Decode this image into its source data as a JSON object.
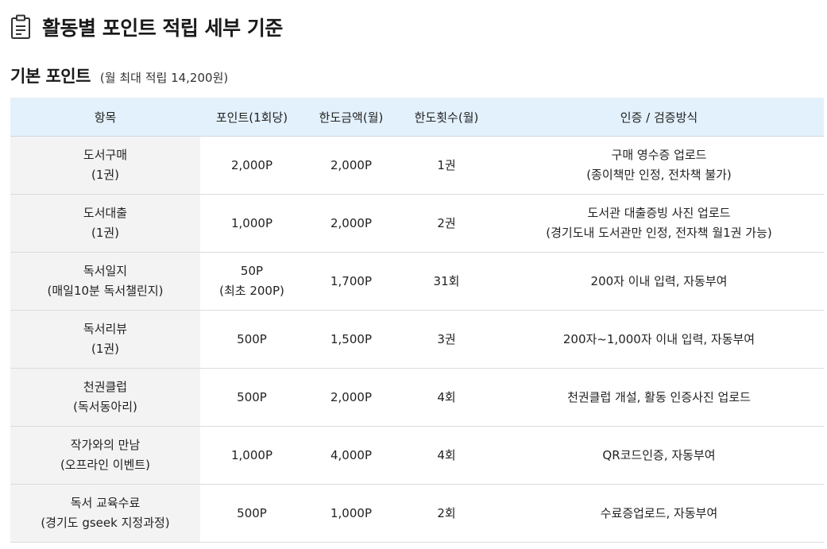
{
  "page": {
    "title": "활동별 포인트 적립 세부 기준"
  },
  "section": {
    "title": "기본 포인트",
    "note": "(월 최대 적립 14,200원)"
  },
  "table": {
    "headers": [
      "항목",
      "포인트(1회당)",
      "한도금액(월)",
      "한도횟수(월)",
      "인증 / 검증방식"
    ],
    "rows": [
      {
        "item": [
          "도서구매",
          "(1권)"
        ],
        "points": [
          "2,000P"
        ],
        "limit_amount": "2,000P",
        "limit_count": "1권",
        "verification": [
          "구매 영수증 업로드",
          "(종이책만 인정, 전차책 불가)"
        ]
      },
      {
        "item": [
          "도서대출",
          "(1권)"
        ],
        "points": [
          "1,000P"
        ],
        "limit_amount": "2,000P",
        "limit_count": "2권",
        "verification": [
          "도서관 대출증빙 사진 업로드",
          "(경기도내 도서관만 인정, 전자책 월1권 가능)"
        ]
      },
      {
        "item": [
          "독서일지",
          "(매일10분 독서챌린지)"
        ],
        "points": [
          "50P",
          "(최초 200P)"
        ],
        "limit_amount": "1,700P",
        "limit_count": "31회",
        "verification": [
          "200자 이내 입력, 자동부여"
        ]
      },
      {
        "item": [
          "독서리뷰",
          "(1권)"
        ],
        "points": [
          "500P"
        ],
        "limit_amount": "1,500P",
        "limit_count": "3권",
        "verification": [
          "200자~1,000자 이내 입력, 자동부여"
        ]
      },
      {
        "item": [
          "천권클럽",
          "(독서동아리)"
        ],
        "points": [
          "500P"
        ],
        "limit_amount": "2,000P",
        "limit_count": "4회",
        "verification": [
          "천권클럽 개설, 활동 인증사진 업로드"
        ]
      },
      {
        "item": [
          "작가와의 만남",
          "(오프라인 이벤트)"
        ],
        "points": [
          "1,000P"
        ],
        "limit_amount": "4,000P",
        "limit_count": "4회",
        "verification": [
          "QR코드인증, 자동부여"
        ]
      },
      {
        "item": [
          "독서 교육수료",
          "(경기도 gseek 지정과정)"
        ],
        "points": [
          "500P"
        ],
        "limit_amount": "1,000P",
        "limit_count": "2회",
        "verification": [
          "수료증업로드, 자동부여"
        ]
      }
    ]
  },
  "icons": {
    "header_icon": "clipboard-icon"
  },
  "colors": {
    "header_bg": "#e3f1fc",
    "item_bg": "#f3f3f3"
  }
}
